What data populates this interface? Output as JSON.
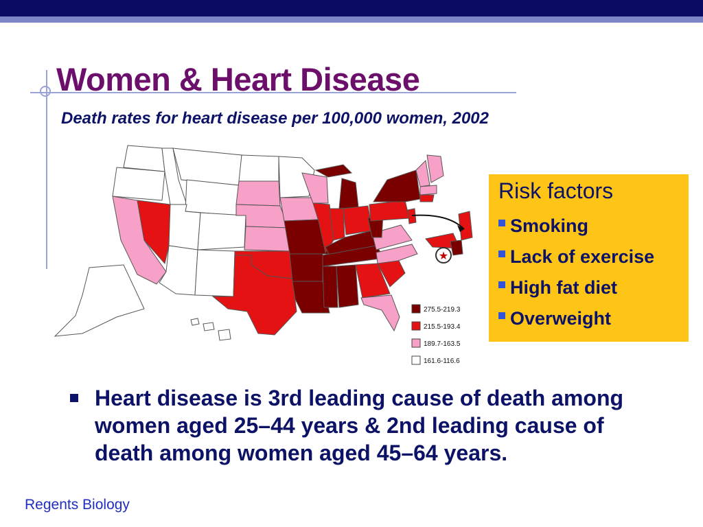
{
  "slide": {
    "title": "Women & Heart Disease",
    "subtitle": "Death rates for heart disease per 100,000 women, 2002",
    "footer": "Regents Biology"
  },
  "map": {
    "legend": [
      {
        "label": "275.5-219.3",
        "color": "#7a0000"
      },
      {
        "label": "215.5-193.4",
        "color": "#e41212"
      },
      {
        "label": "189.7-163.5",
        "color": "#f7a1c8"
      },
      {
        "label": "161.6-116.6",
        "color": "#ffffff"
      }
    ]
  },
  "risk_factors": {
    "title": "Risk factors",
    "items": [
      "Smoking",
      "Lack of exercise",
      "High fat diet",
      "Overweight"
    ]
  },
  "main_bullet": "Heart disease is 3rd leading cause of death among women aged 25–44 years & 2nd leading cause of death among women aged 45–64 years.",
  "colors": {
    "title": "#6b0f6b",
    "text": "#0c1266",
    "risk_box": "#fec517",
    "band": "#0b0b63"
  }
}
